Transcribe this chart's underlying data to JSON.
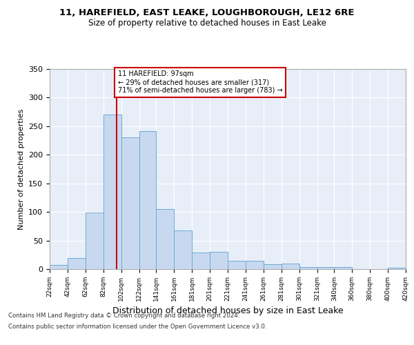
{
  "title1": "11, HAREFIELD, EAST LEAKE, LOUGHBOROUGH, LE12 6RE",
  "title2": "Size of property relative to detached houses in East Leake",
  "xlabel": "Distribution of detached houses by size in East Leake",
  "ylabel": "Number of detached properties",
  "annotation_line1": "11 HAREFIELD: 97sqm",
  "annotation_line2": "← 29% of detached houses are smaller (317)",
  "annotation_line3": "71% of semi-detached houses are larger (783) →",
  "property_size": 97,
  "bin_edges": [
    22,
    42,
    62,
    82,
    102,
    122,
    141,
    161,
    181,
    201,
    221,
    241,
    261,
    281,
    301,
    321,
    340,
    360,
    380,
    400,
    420
  ],
  "bar_heights": [
    7,
    19,
    99,
    270,
    231,
    241,
    105,
    68,
    29,
    30,
    14,
    14,
    8,
    10,
    4,
    4,
    4,
    0,
    0,
    3
  ],
  "bar_color": "#c8d9ef",
  "bar_edge_color": "#6aaad4",
  "line_color": "#cc0000",
  "bg_color": "#e8eef8",
  "grid_color": "#ffffff",
  "annotation_box_color": "#cc0000",
  "footer1": "Contains HM Land Registry data © Crown copyright and database right 2024.",
  "footer2": "Contains public sector information licensed under the Open Government Licence v3.0.",
  "ylim": [
    0,
    350
  ],
  "yticks": [
    0,
    50,
    100,
    150,
    200,
    250,
    300,
    350
  ]
}
